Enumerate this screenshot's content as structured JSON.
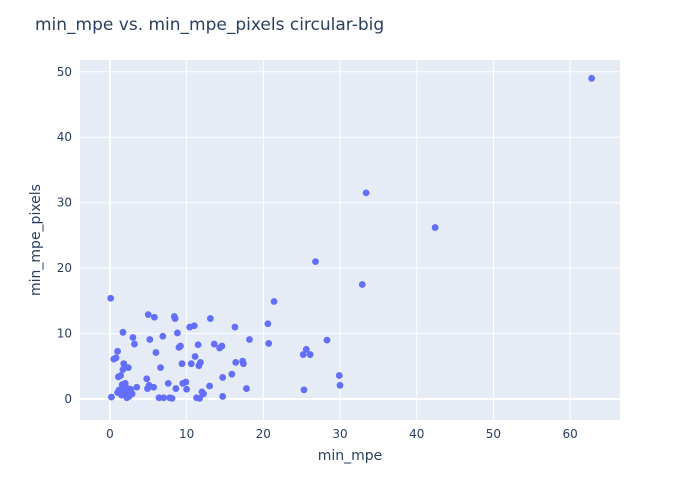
{
  "chart_data": {
    "type": "scatter",
    "title": "min_mpe vs. min_mpe_pixels circular-big",
    "xlabel": "min_mpe",
    "ylabel": "min_mpe_pixels",
    "xlim": [
      -3.9,
      66.5
    ],
    "ylim": [
      -3.2,
      51.8
    ],
    "xticks": [
      0,
      10,
      20,
      30,
      40,
      50,
      60
    ],
    "yticks": [
      0,
      10,
      20,
      30,
      40,
      50
    ],
    "grid": true,
    "colors": {
      "plot_bg": "#e5ecf6",
      "grid": "#ffffff",
      "marker": "#636efa",
      "text": "#2a3f5f"
    },
    "series": [
      {
        "points": [
          [
            0.1,
            15.4
          ],
          [
            0.2,
            0.3
          ],
          [
            0.5,
            6.1
          ],
          [
            0.8,
            6.3
          ],
          [
            1.0,
            7.3
          ],
          [
            1.0,
            1.0
          ],
          [
            1.1,
            3.4
          ],
          [
            1.2,
            1.4
          ],
          [
            1.4,
            3.6
          ],
          [
            1.5,
            0.6
          ],
          [
            1.6,
            2.2
          ],
          [
            1.7,
            10.2
          ],
          [
            1.7,
            4.5
          ],
          [
            1.8,
            5.4
          ],
          [
            1.9,
            1.8
          ],
          [
            2.0,
            2.4
          ],
          [
            2.0,
            1.1
          ],
          [
            2.1,
            0.6
          ],
          [
            2.2,
            0.2
          ],
          [
            2.3,
            1.6
          ],
          [
            2.4,
            4.8
          ],
          [
            2.5,
            0.4
          ],
          [
            2.6,
            1.3
          ],
          [
            2.7,
            1.5
          ],
          [
            2.9,
            0.8
          ],
          [
            3.0,
            9.4
          ],
          [
            3.2,
            8.4
          ],
          [
            3.5,
            1.8
          ],
          [
            4.8,
            3.1
          ],
          [
            4.9,
            1.6
          ],
          [
            5.0,
            12.9
          ],
          [
            5.1,
            2.1
          ],
          [
            5.2,
            9.1
          ],
          [
            5.7,
            1.8
          ],
          [
            5.8,
            12.5
          ],
          [
            6.0,
            7.1
          ],
          [
            6.4,
            0.2
          ],
          [
            6.6,
            4.8
          ],
          [
            6.9,
            9.6
          ],
          [
            7.0,
            0.2
          ],
          [
            7.6,
            2.4
          ],
          [
            7.8,
            0.2
          ],
          [
            8.1,
            0.1
          ],
          [
            8.4,
            12.6
          ],
          [
            8.5,
            12.3
          ],
          [
            8.6,
            1.6
          ],
          [
            8.8,
            10.1
          ],
          [
            9.0,
            7.9
          ],
          [
            9.2,
            8.1
          ],
          [
            9.4,
            5.4
          ],
          [
            9.5,
            2.4
          ],
          [
            9.9,
            2.6
          ],
          [
            10.0,
            1.5
          ],
          [
            10.4,
            11.0
          ],
          [
            10.6,
            5.4
          ],
          [
            11.0,
            11.2
          ],
          [
            11.1,
            6.5
          ],
          [
            11.3,
            0.2
          ],
          [
            11.5,
            8.3
          ],
          [
            11.6,
            5.1
          ],
          [
            11.7,
            0.1
          ],
          [
            11.8,
            5.6
          ],
          [
            12.0,
            1.1
          ],
          [
            12.2,
            0.8
          ],
          [
            13.0,
            2.0
          ],
          [
            13.1,
            12.3
          ],
          [
            13.6,
            8.4
          ],
          [
            14.3,
            7.8
          ],
          [
            14.6,
            8.1
          ],
          [
            14.7,
            0.4
          ],
          [
            14.7,
            3.3
          ],
          [
            15.9,
            3.8
          ],
          [
            16.3,
            11.0
          ],
          [
            16.4,
            5.6
          ],
          [
            17.3,
            5.8
          ],
          [
            17.4,
            5.4
          ],
          [
            17.8,
            1.6
          ],
          [
            18.2,
            9.1
          ],
          [
            20.6,
            11.5
          ],
          [
            20.7,
            8.5
          ],
          [
            21.4,
            14.9
          ],
          [
            25.2,
            6.8
          ],
          [
            25.3,
            1.4
          ],
          [
            25.6,
            7.6
          ],
          [
            26.1,
            6.8
          ],
          [
            26.8,
            21.0
          ],
          [
            28.3,
            9.0
          ],
          [
            29.9,
            3.6
          ],
          [
            30.0,
            2.1
          ],
          [
            32.9,
            17.5
          ],
          [
            33.4,
            31.5
          ],
          [
            42.4,
            26.2
          ],
          [
            62.8,
            49.0
          ]
        ]
      }
    ]
  }
}
